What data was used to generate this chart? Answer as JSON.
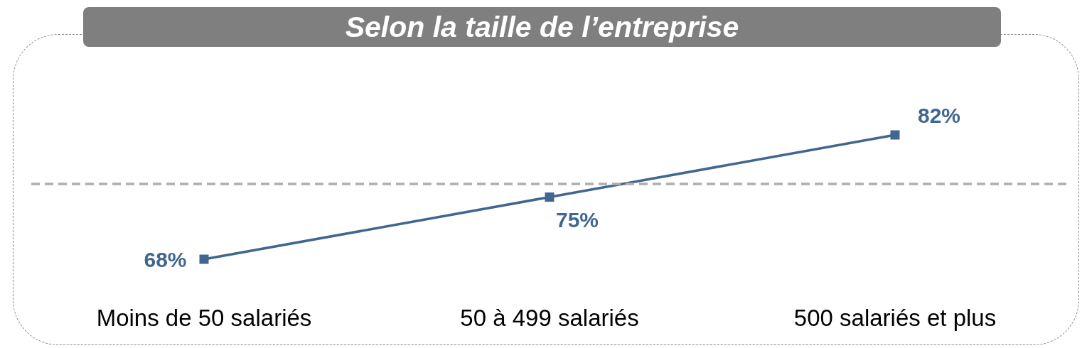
{
  "chart_data": {
    "type": "line",
    "title": "Selon la taille de l’entreprise",
    "categories": [
      "Moins de 50 salariés",
      "50 à 499 salariés",
      "500 salariés et plus"
    ],
    "series": [
      {
        "color": "#41668f",
        "values": [
          68,
          75,
          82
        ],
        "value_labels": [
          "68%",
          "75%",
          "82%"
        ]
      }
    ],
    "marker": "square",
    "line_style": "solid",
    "ref_lines": [
      {
        "axis": "y",
        "value": 76.5,
        "color": "#b0aeae",
        "line_style": "dashed"
      }
    ],
    "tick_labels": "x",
    "grid": false
  }
}
